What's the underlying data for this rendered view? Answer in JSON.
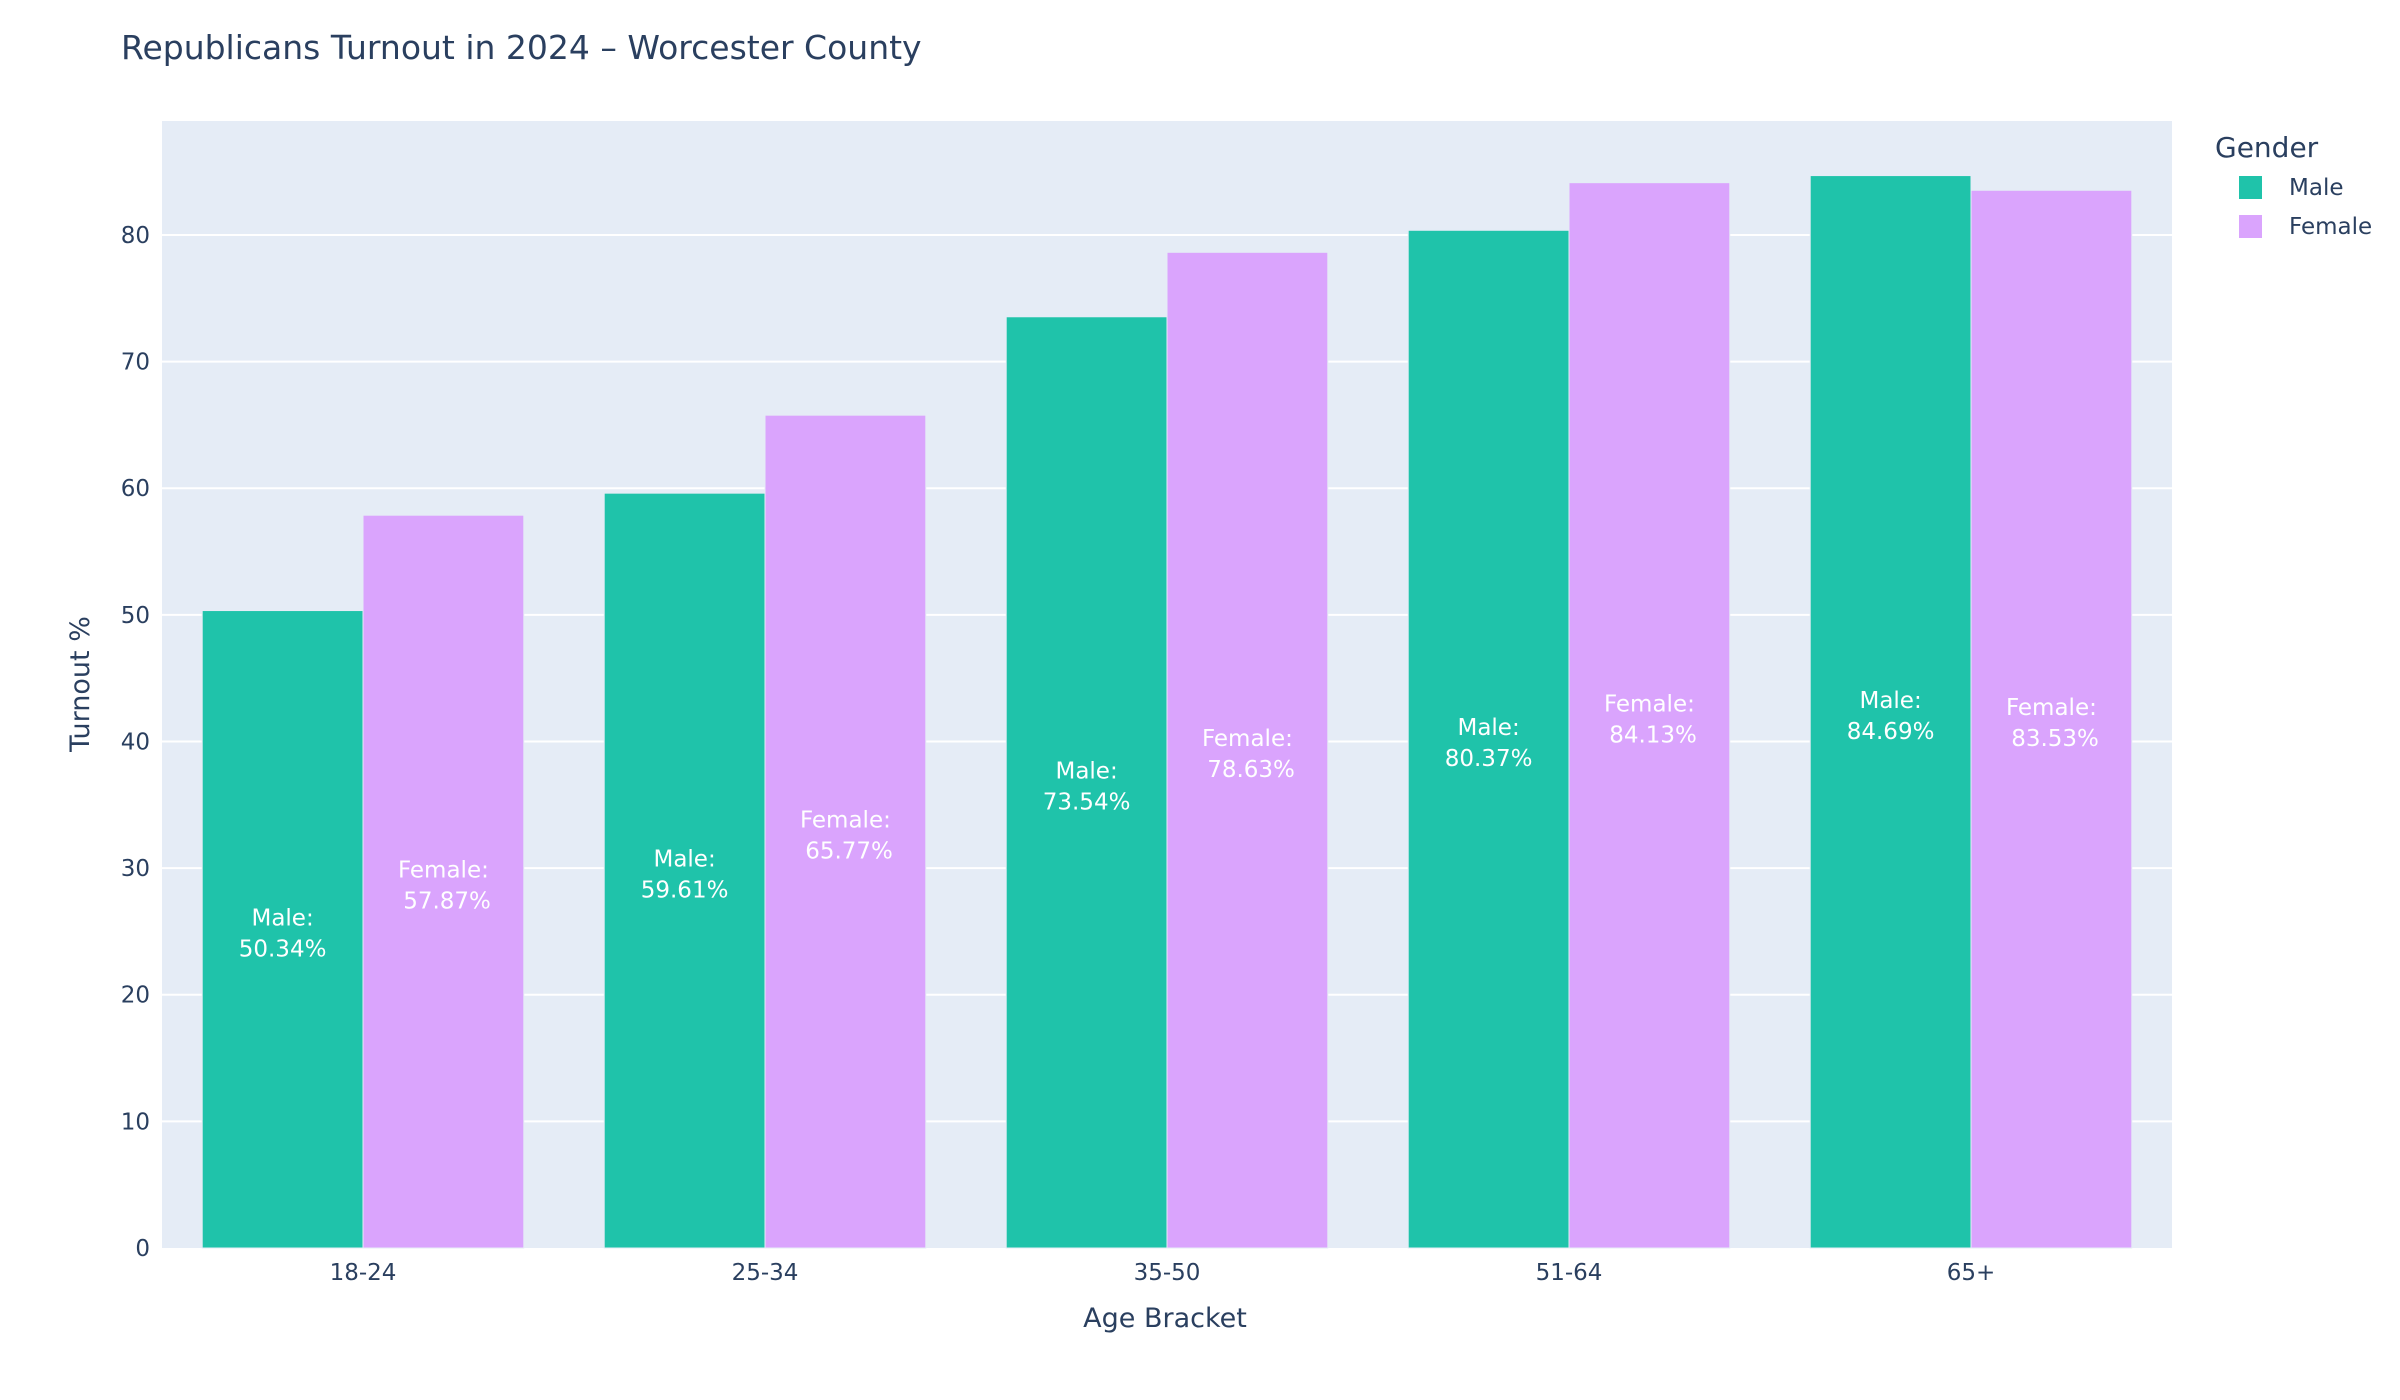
{
  "chart_data": {
    "type": "bar",
    "title": "Republicans Turnout in 2024 – Worcester County",
    "xlabel": "Age Bracket",
    "ylabel": "Turnout %",
    "categories": [
      "18-24",
      "25-34",
      "35-50",
      "51-64",
      "65+"
    ],
    "ylim": [
      0,
      89
    ],
    "yticks": [
      0,
      10,
      20,
      30,
      40,
      50,
      60,
      70,
      80
    ],
    "grid": true,
    "legend": {
      "title": "Gender",
      "placement": "top-right, outside plot"
    },
    "series": [
      {
        "name": "Male",
        "color": "#1fc3aa",
        "values": [
          50.34,
          59.61,
          73.54,
          80.37,
          84.69
        ],
        "labels": [
          [
            "Male:",
            "50.34%"
          ],
          [
            "Male:",
            "59.61%"
          ],
          [
            "Male:",
            "73.54%"
          ],
          [
            "Male:",
            "80.37%"
          ],
          [
            "Male:",
            "84.69%"
          ]
        ]
      },
      {
        "name": "Female",
        "color": "#daa4fd",
        "values": [
          57.87,
          65.77,
          78.63,
          84.13,
          83.53
        ],
        "labels": [
          [
            "Female:",
            " 57.87%"
          ],
          [
            "Female:",
            " 65.77%"
          ],
          [
            "Female:",
            " 78.63%"
          ],
          [
            "Female:",
            " 84.13%"
          ],
          [
            "Female:",
            " 83.53%"
          ]
        ]
      }
    ],
    "colors": {
      "plot_bg": "#e5ecf6",
      "grid": "#ffffff",
      "text": "#2a3f5f"
    }
  }
}
